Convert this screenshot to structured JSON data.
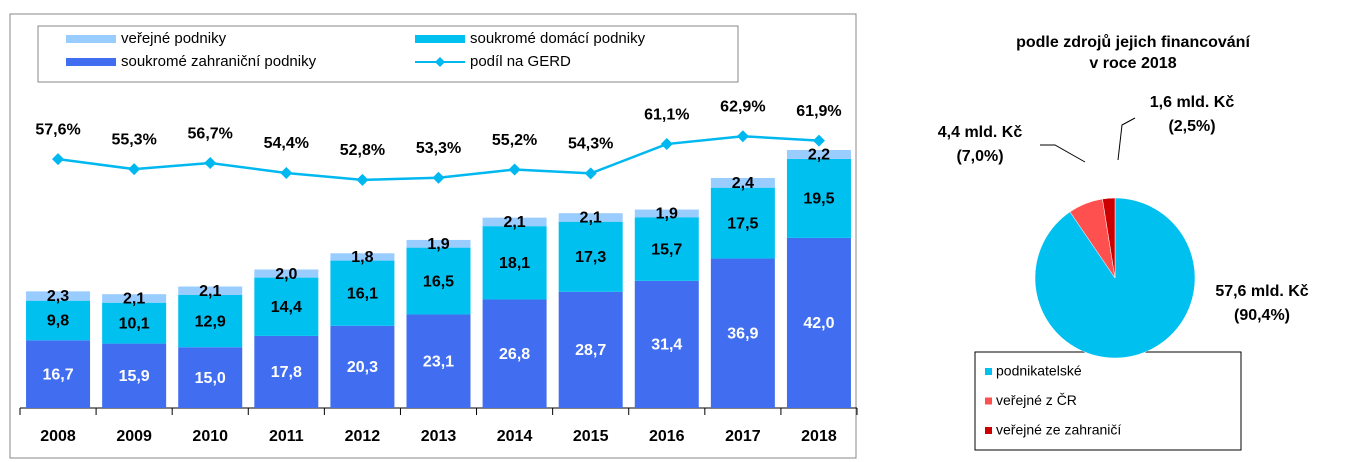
{
  "chart_data": [
    {
      "type": "bar",
      "categories": [
        "2008",
        "2009",
        "2010",
        "2011",
        "2012",
        "2013",
        "2014",
        "2015",
        "2016",
        "2017",
        "2018"
      ],
      "stacked": true,
      "ylim": [
        0,
        80
      ],
      "y2lim": [
        0,
        75
      ],
      "series": [
        {
          "name": "soukromé zahraniční podniky",
          "color": "#416ef0",
          "values": [
            16.7,
            15.9,
            15.0,
            17.8,
            20.3,
            23.1,
            26.8,
            28.7,
            31.4,
            36.9,
            42.0
          ],
          "value_labels": [
            "16,7",
            "15,9",
            "15,0",
            "17,8",
            "20,3",
            "23,1",
            "26,8",
            "28,7",
            "31,4",
            "36,9",
            "42,0"
          ]
        },
        {
          "name": "soukromé domácí podniky",
          "color": "#00c0f0",
          "values": [
            9.8,
            10.1,
            12.9,
            14.4,
            16.1,
            16.5,
            18.1,
            17.3,
            15.7,
            17.5,
            19.5
          ],
          "value_labels": [
            "9,8",
            "10,1",
            "12,9",
            "14,4",
            "16,1",
            "16,5",
            "18,1",
            "17,3",
            "15,7",
            "17,5",
            "19,5"
          ]
        },
        {
          "name": "veřejné podniky",
          "color": "#99ccff",
          "values": [
            2.3,
            2.1,
            2.1,
            2.0,
            1.8,
            1.9,
            2.1,
            2.1,
            1.9,
            2.4,
            2.2
          ],
          "value_labels": [
            "2,3",
            "2,1",
            "2,1",
            "2,0",
            "1,8",
            "1,9",
            "2,1",
            "2,1",
            "1,9",
            "2,4",
            "2,2"
          ]
        },
        {
          "name": "podíl na GERD",
          "type": "line",
          "axis": "y2",
          "color": "#00b8f0",
          "values": [
            57.6,
            55.3,
            56.7,
            54.4,
            52.8,
            53.3,
            55.2,
            54.3,
            61.1,
            62.9,
            61.9
          ],
          "value_labels": [
            "57,6%",
            "55,3%",
            "56,7%",
            "54,4%",
            "52,8%",
            "53,3%",
            "55,2%",
            "54,3%",
            "61,1%",
            "62,9%",
            "61,9%"
          ]
        }
      ]
    },
    {
      "type": "pie",
      "title": [
        "podle zdrojů jejich financování",
        "v roce 2018"
      ],
      "categories": [
        "podnikatelské",
        "veřejné z ČR",
        "veřejné ze zahraničí"
      ],
      "colors": [
        "#00c0f0",
        "#ff5050",
        "#cc0000"
      ],
      "values": [
        90.4,
        7.0,
        2.5
      ],
      "value_labels": [
        "(90,4%)",
        "(7,0%)",
        "(2,5%)"
      ],
      "amounts": [
        57.6,
        4.4,
        1.6
      ],
      "amount_labels": [
        "57,6 mld. Kč",
        "4,4 mld. Kč",
        "1,6 mld. Kč"
      ]
    }
  ]
}
